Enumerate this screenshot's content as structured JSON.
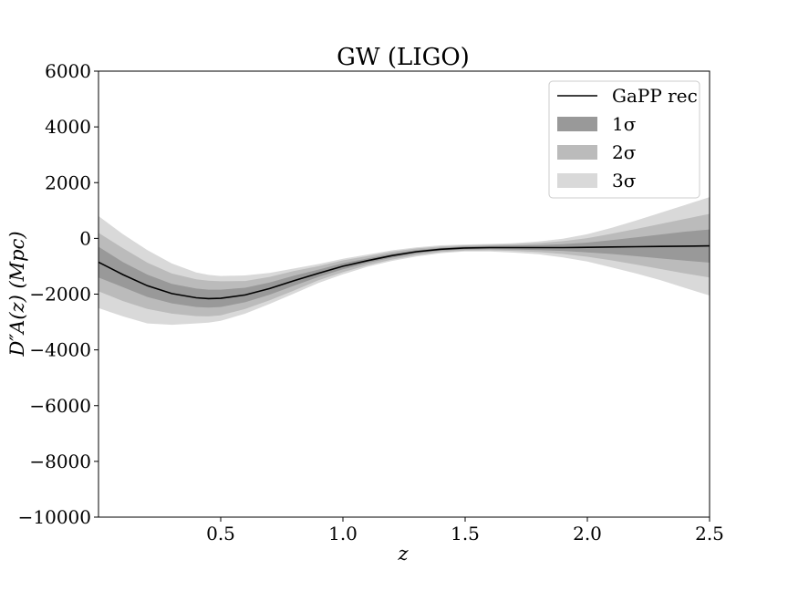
{
  "chart_data": {
    "type": "line",
    "title": "GW (LIGO)",
    "xlabel": "z",
    "ylabel": "D″A(z) (Mpc)",
    "xlim": [
      0.0,
      2.5
    ],
    "ylim": [
      -10000,
      6000
    ],
    "xticks": [
      0.5,
      1.0,
      1.5,
      2.0,
      2.5
    ],
    "xtick_labels": [
      "0.5",
      "1.0",
      "1.5",
      "2.0",
      "2.5"
    ],
    "yticks": [
      6000,
      4000,
      2000,
      0,
      -2000,
      -4000,
      -6000,
      -8000,
      -10000
    ],
    "ytick_labels": [
      "6000",
      "4000",
      "2000",
      "0",
      "−2000",
      "−4000",
      "−6000",
      "−8000",
      "−10000"
    ],
    "grid": false,
    "legend_position": "top-right",
    "legend": [
      {
        "label": "GaPP rec",
        "kind": "line",
        "color": "#000000"
      },
      {
        "label": "1σ",
        "kind": "patch",
        "color": "#999999"
      },
      {
        "label": "2σ",
        "kind": "patch",
        "color": "#bbbbbb"
      },
      {
        "label": "3σ",
        "kind": "patch",
        "color": "#d9d9d9"
      }
    ],
    "x": [
      0.0,
      0.1,
      0.2,
      0.3,
      0.4,
      0.45,
      0.5,
      0.6,
      0.7,
      0.8,
      0.9,
      1.0,
      1.1,
      1.2,
      1.3,
      1.4,
      1.5,
      1.6,
      1.7,
      1.8,
      1.9,
      2.0,
      2.1,
      2.2,
      2.3,
      2.4,
      2.5
    ],
    "series": [
      {
        "name": "GaPP rec",
        "values": [
          -850,
          -1300,
          -1700,
          -1980,
          -2130,
          -2160,
          -2150,
          -2030,
          -1800,
          -1520,
          -1250,
          -1000,
          -800,
          -620,
          -480,
          -390,
          -345,
          -330,
          -330,
          -330,
          -330,
          -320,
          -310,
          -300,
          -290,
          -280,
          -270
        ],
        "sigma1_lower": [
          -1400,
          -1750,
          -2100,
          -2330,
          -2460,
          -2480,
          -2460,
          -2290,
          -2020,
          -1700,
          -1380,
          -1110,
          -880,
          -690,
          -540,
          -440,
          -400,
          -390,
          -400,
          -420,
          -450,
          -500,
          -560,
          -640,
          -720,
          -800,
          -870
        ],
        "sigma1_upper": [
          -300,
          -850,
          -1300,
          -1630,
          -1800,
          -1840,
          -1840,
          -1770,
          -1580,
          -1340,
          -1120,
          -890,
          -720,
          -550,
          -420,
          -340,
          -290,
          -270,
          -260,
          -240,
          -210,
          -150,
          -60,
          40,
          140,
          240,
          320
        ],
        "sigma2_lower": [
          -1900,
          -2250,
          -2530,
          -2700,
          -2790,
          -2800,
          -2760,
          -2530,
          -2220,
          -1870,
          -1500,
          -1210,
          -960,
          -760,
          -600,
          -490,
          -440,
          -430,
          -450,
          -490,
          -560,
          -660,
          -790,
          -940,
          -1100,
          -1260,
          -1400
        ],
        "sigma2_upper": [
          200,
          -350,
          -870,
          -1260,
          -1470,
          -1520,
          -1540,
          -1530,
          -1380,
          -1170,
          -1000,
          -790,
          -640,
          -480,
          -360,
          -290,
          -250,
          -230,
          -210,
          -170,
          -100,
          10,
          170,
          340,
          520,
          700,
          880
        ],
        "sigma3_lower": [
          -2500,
          -2800,
          -3050,
          -3100,
          -3050,
          -3020,
          -2960,
          -2700,
          -2350,
          -1980,
          -1600,
          -1290,
          -1020,
          -810,
          -650,
          -530,
          -470,
          -470,
          -510,
          -570,
          -680,
          -830,
          -1040,
          -1260,
          -1500,
          -1780,
          -2050
        ],
        "sigma3_upper": [
          800,
          150,
          -420,
          -900,
          -1220,
          -1310,
          -1350,
          -1330,
          -1240,
          -1080,
          -920,
          -730,
          -580,
          -430,
          -320,
          -250,
          -220,
          -200,
          -170,
          -110,
          -10,
          150,
          380,
          640,
          920,
          1200,
          1480
        ]
      }
    ]
  }
}
